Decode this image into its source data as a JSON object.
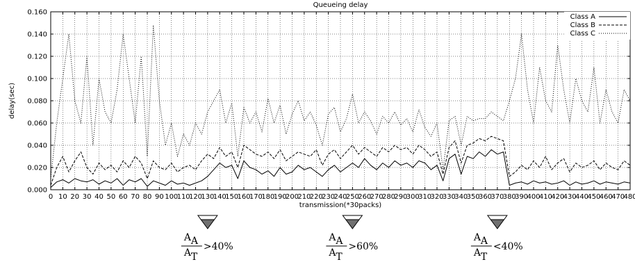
{
  "chart_data": {
    "type": "line",
    "title": "Queueing delay",
    "xlabel": "transmission(*30packs)",
    "ylabel": "delay(sec)",
    "xlim": [
      0,
      480
    ],
    "ylim": [
      0,
      0.16
    ],
    "x_ticks": [
      "0",
      "10",
      "20",
      "30",
      "40",
      "50",
      "60",
      "70",
      "80",
      "90",
      "100",
      "110",
      "120",
      "130",
      "140",
      "150",
      "160",
      "170",
      "180",
      "190",
      "200",
      "210",
      "220",
      "230",
      "240",
      "250",
      "260",
      "270",
      "280",
      "290",
      "300",
      "310",
      "320",
      "330",
      "340",
      "350",
      "360",
      "370",
      "380",
      "390",
      "400",
      "410",
      "420",
      "430",
      "440",
      "450",
      "460",
      "470",
      "480"
    ],
    "y_ticks": [
      "0.000",
      "0.020",
      "0.040",
      "0.060",
      "0.080",
      "0.100",
      "0.120",
      "0.140",
      "0.160"
    ],
    "grid": true,
    "legend_position": "top-right",
    "series": [
      {
        "name": "Class A",
        "style": "solid",
        "x": [
          0,
          5,
          10,
          15,
          20,
          25,
          30,
          35,
          40,
          45,
          50,
          55,
          60,
          65,
          70,
          75,
          80,
          85,
          90,
          95,
          100,
          105,
          110,
          115,
          120,
          125,
          130,
          135,
          140,
          145,
          150,
          155,
          160,
          165,
          170,
          175,
          180,
          185,
          190,
          195,
          200,
          205,
          210,
          215,
          220,
          225,
          230,
          235,
          240,
          245,
          250,
          255,
          260,
          265,
          270,
          275,
          280,
          285,
          290,
          295,
          300,
          305,
          310,
          315,
          320,
          325,
          330,
          335,
          340,
          345,
          350,
          355,
          360,
          365,
          370,
          375,
          380,
          385,
          390,
          395,
          400,
          405,
          410,
          415,
          420,
          425,
          430,
          435,
          440,
          445,
          450,
          455,
          460,
          465,
          470,
          475,
          480
        ],
        "values": [
          0.002,
          0.007,
          0.009,
          0.006,
          0.01,
          0.008,
          0.007,
          0.009,
          0.005,
          0.008,
          0.006,
          0.01,
          0.004,
          0.009,
          0.007,
          0.01,
          0.003,
          0.008,
          0.006,
          0.004,
          0.008,
          0.005,
          0.006,
          0.004,
          0.006,
          0.008,
          0.012,
          0.018,
          0.024,
          0.02,
          0.022,
          0.01,
          0.026,
          0.02,
          0.018,
          0.014,
          0.017,
          0.012,
          0.02,
          0.014,
          0.016,
          0.022,
          0.018,
          0.02,
          0.016,
          0.012,
          0.018,
          0.022,
          0.016,
          0.02,
          0.024,
          0.02,
          0.028,
          0.022,
          0.018,
          0.024,
          0.02,
          0.026,
          0.022,
          0.024,
          0.02,
          0.026,
          0.024,
          0.018,
          0.022,
          0.008,
          0.028,
          0.032,
          0.014,
          0.03,
          0.028,
          0.034,
          0.03,
          0.036,
          0.032,
          0.034,
          0.004,
          0.006,
          0.007,
          0.005,
          0.008,
          0.006,
          0.007,
          0.005,
          0.006,
          0.008,
          0.004,
          0.007,
          0.005,
          0.006,
          0.008,
          0.005,
          0.007,
          0.006,
          0.005,
          0.007,
          0.006
        ]
      },
      {
        "name": "Class B",
        "style": "dashed",
        "x": [
          0,
          5,
          10,
          15,
          20,
          25,
          30,
          35,
          40,
          45,
          50,
          55,
          60,
          65,
          70,
          75,
          80,
          85,
          90,
          95,
          100,
          105,
          110,
          115,
          120,
          125,
          130,
          135,
          140,
          145,
          150,
          155,
          160,
          165,
          170,
          175,
          180,
          185,
          190,
          195,
          200,
          205,
          210,
          215,
          220,
          225,
          230,
          235,
          240,
          245,
          250,
          255,
          260,
          265,
          270,
          275,
          280,
          285,
          290,
          295,
          300,
          305,
          310,
          315,
          320,
          325,
          330,
          335,
          340,
          345,
          350,
          355,
          360,
          365,
          370,
          375,
          380,
          385,
          390,
          395,
          400,
          405,
          410,
          415,
          420,
          425,
          430,
          435,
          440,
          445,
          450,
          455,
          460,
          465,
          470,
          475,
          480
        ],
        "values": [
          0.004,
          0.02,
          0.03,
          0.016,
          0.026,
          0.034,
          0.02,
          0.014,
          0.024,
          0.018,
          0.022,
          0.016,
          0.026,
          0.02,
          0.03,
          0.024,
          0.01,
          0.026,
          0.02,
          0.018,
          0.024,
          0.016,
          0.02,
          0.022,
          0.018,
          0.026,
          0.032,
          0.028,
          0.038,
          0.03,
          0.034,
          0.02,
          0.04,
          0.036,
          0.032,
          0.03,
          0.034,
          0.028,
          0.036,
          0.026,
          0.03,
          0.034,
          0.032,
          0.03,
          0.036,
          0.022,
          0.032,
          0.036,
          0.028,
          0.034,
          0.04,
          0.032,
          0.038,
          0.034,
          0.03,
          0.038,
          0.034,
          0.04,
          0.036,
          0.038,
          0.032,
          0.04,
          0.036,
          0.03,
          0.034,
          0.014,
          0.038,
          0.044,
          0.024,
          0.04,
          0.042,
          0.046,
          0.044,
          0.048,
          0.046,
          0.044,
          0.012,
          0.016,
          0.022,
          0.018,
          0.026,
          0.02,
          0.03,
          0.018,
          0.024,
          0.028,
          0.016,
          0.024,
          0.02,
          0.022,
          0.026,
          0.018,
          0.024,
          0.02,
          0.018,
          0.026,
          0.022
        ]
      },
      {
        "name": "Class C",
        "style": "dotted",
        "x": [
          0,
          5,
          10,
          15,
          20,
          25,
          30,
          35,
          40,
          45,
          50,
          55,
          60,
          65,
          70,
          75,
          80,
          85,
          90,
          95,
          100,
          105,
          110,
          115,
          120,
          125,
          130,
          135,
          140,
          145,
          150,
          155,
          160,
          165,
          170,
          175,
          180,
          185,
          190,
          195,
          200,
          205,
          210,
          215,
          220,
          225,
          230,
          235,
          240,
          245,
          250,
          255,
          260,
          265,
          270,
          275,
          280,
          285,
          290,
          295,
          300,
          305,
          310,
          315,
          320,
          325,
          330,
          335,
          340,
          345,
          350,
          355,
          360,
          365,
          370,
          375,
          380,
          385,
          390,
          395,
          400,
          405,
          410,
          415,
          420,
          425,
          430,
          435,
          440,
          445,
          450,
          455,
          460,
          465,
          470,
          475,
          480
        ],
        "values": [
          0.01,
          0.06,
          0.1,
          0.14,
          0.08,
          0.06,
          0.12,
          0.04,
          0.1,
          0.07,
          0.06,
          0.09,
          0.14,
          0.1,
          0.06,
          0.12,
          0.03,
          0.148,
          0.08,
          0.04,
          0.06,
          0.03,
          0.05,
          0.04,
          0.06,
          0.05,
          0.07,
          0.08,
          0.09,
          0.06,
          0.078,
          0.03,
          0.074,
          0.06,
          0.07,
          0.052,
          0.082,
          0.06,
          0.076,
          0.05,
          0.068,
          0.08,
          0.062,
          0.07,
          0.058,
          0.04,
          0.068,
          0.074,
          0.052,
          0.064,
          0.086,
          0.06,
          0.07,
          0.062,
          0.05,
          0.066,
          0.06,
          0.07,
          0.058,
          0.064,
          0.052,
          0.072,
          0.056,
          0.048,
          0.06,
          0.018,
          0.062,
          0.066,
          0.04,
          0.066,
          0.062,
          0.064,
          0.064,
          0.07,
          0.066,
          0.062,
          0.08,
          0.1,
          0.14,
          0.09,
          0.06,
          0.11,
          0.08,
          0.07,
          0.13,
          0.09,
          0.06,
          0.1,
          0.08,
          0.07,
          0.11,
          0.06,
          0.09,
          0.07,
          0.06,
          0.09,
          0.08
        ]
      }
    ],
    "annotations": [
      {
        "x": 130,
        "numerator": "A",
        "numerator_sub": "A",
        "denominator": "A",
        "denominator_sub": "T",
        "text": ">40%"
      },
      {
        "x": 250,
        "numerator": "A",
        "numerator_sub": "A",
        "denominator": "A",
        "denominator_sub": "T",
        "text": ">60%"
      },
      {
        "x": 370,
        "numerator": "A",
        "numerator_sub": "A",
        "denominator": "A",
        "denominator_sub": "T",
        "text": "<40%"
      }
    ]
  }
}
